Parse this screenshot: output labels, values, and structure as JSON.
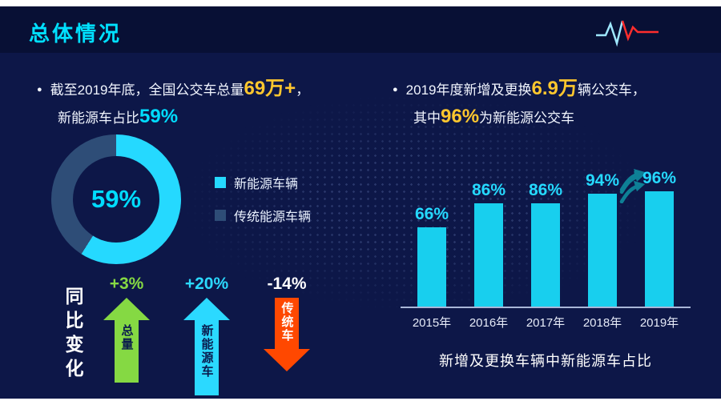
{
  "header": {
    "title": "总体情况"
  },
  "colors": {
    "cyan": "#00dcff",
    "yellow": "#ffc72e",
    "green": "#85d943",
    "red": "#ff4800",
    "bar": "#18cfee",
    "trend_arrow": "#0e8096",
    "dark_text": "#0a1b4d"
  },
  "left": {
    "line1_pre": "截至2019年底，全国公交车总量",
    "line1_highlight": "69万+",
    "line1_post": "，",
    "line2_pre": "新能源车占比",
    "line2_highlight": "59%",
    "yoy": {
      "title": "同比变化",
      "items": [
        {
          "value": "+3%",
          "name": "总量",
          "direction": "up",
          "color": "#85d943",
          "label_color": "#85d943",
          "text_color": "#0a1b4d"
        },
        {
          "value": "+20%",
          "name": "新能源车",
          "direction": "up",
          "color": "#2bd9ff",
          "label_color": "#2bd9ff",
          "text_color": "#0a1b4d"
        },
        {
          "value": "-14%",
          "name": "传统车",
          "direction": "down",
          "color": "#ff4800",
          "label_color": "#ffffff",
          "text_color": "#ffffff"
        }
      ]
    }
  },
  "right": {
    "line1_pre": "2019年度新增及更换",
    "line1_highlight": "6.9万",
    "line1_post": "辆公交车，",
    "line2_pre": "其中",
    "line2_highlight": "96%",
    "line2_post": "为新能源公交车",
    "caption": "新增及更换车辆中新能源车占比"
  },
  "chart_data": [
    {
      "type": "pie",
      "labels": [
        "新能源车辆",
        "传统能源车辆"
      ],
      "values": [
        59,
        41
      ],
      "colors": [
        "#25d9ff",
        "#2e4d77"
      ],
      "title": "新能源车占比",
      "center_label": "59%"
    },
    {
      "type": "bar",
      "categories": [
        "2015年",
        "2016年",
        "2017年",
        "2018年",
        "2019年"
      ],
      "values": [
        66,
        86,
        86,
        94,
        96
      ],
      "unit": "%",
      "ylim": [
        0,
        100
      ],
      "bar_color": "#18cfee",
      "value_label_color": "#25d9ff",
      "title": "新增及更换车辆中新能源车占比"
    }
  ]
}
